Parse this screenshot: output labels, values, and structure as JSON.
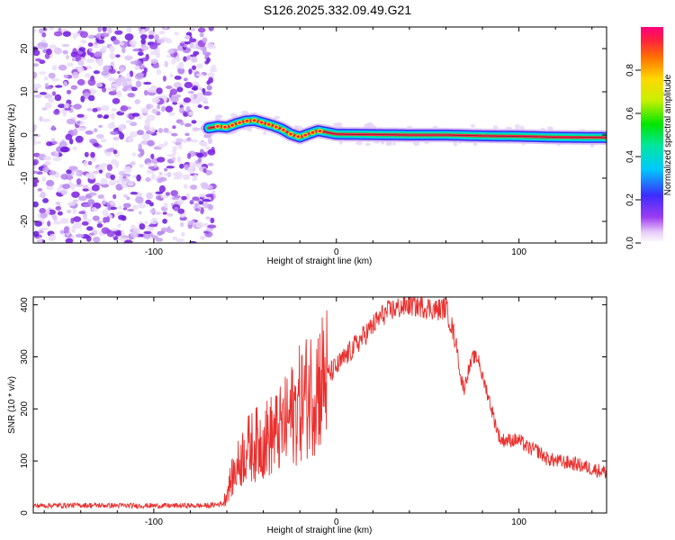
{
  "title": "S126.2025.332.09.49.G21",
  "colors": {
    "signal_line": "#e8302e",
    "axis": "#000000",
    "noise": "#7a2ee6",
    "track_center": "#ff2060"
  },
  "chart_data": [
    {
      "type": "heatmap",
      "xlabel": "Height of straight line (km)",
      "ylabel": "Frequency (Hz)",
      "xlim": [
        -166,
        148
      ],
      "ylim": [
        -25,
        25
      ],
      "xticks": [
        -100,
        0,
        100
      ],
      "yticks": [
        -20,
        -10,
        0,
        10,
        20
      ],
      "noise_region_x": [
        -166,
        -69
      ],
      "track": [
        [
          -70,
          1.6
        ],
        [
          -65,
          2.0
        ],
        [
          -60,
          1.8
        ],
        [
          -55,
          2.6
        ],
        [
          -50,
          3.2
        ],
        [
          -45,
          3.4
        ],
        [
          -40,
          2.8
        ],
        [
          -35,
          2.2
        ],
        [
          -30,
          1.4
        ],
        [
          -25,
          0.2
        ],
        [
          -20,
          -0.5
        ],
        [
          -15,
          0.3
        ],
        [
          -10,
          1.0
        ],
        [
          -5,
          0.6
        ],
        [
          0,
          0.2
        ],
        [
          20,
          0.1
        ],
        [
          40,
          0.0
        ],
        [
          60,
          0.0
        ],
        [
          80,
          -0.2
        ],
        [
          100,
          -0.3
        ],
        [
          120,
          -0.5
        ],
        [
          148,
          -0.6
        ]
      ],
      "colorbar": {
        "label": "Normalized spectral amplitude",
        "ticks": [
          0.0,
          0.2,
          0.4,
          0.6,
          0.8
        ],
        "range": [
          0,
          1
        ]
      }
    },
    {
      "type": "line",
      "xlabel": "Height of straight line (km)",
      "ylabel": "SNR (10 * v/v)",
      "xlim": [
        -166,
        148
      ],
      "ylim": [
        0,
        415
      ],
      "xticks": [
        -100,
        0,
        100
      ],
      "yticks": [
        0,
        100,
        200,
        300,
        400
      ],
      "series": [
        {
          "name": "SNR",
          "x": [
            -166,
            -140,
            -110,
            -90,
            -70,
            -62,
            -58,
            -50,
            -40,
            -30,
            -20,
            -10,
            0,
            10,
            20,
            25,
            30,
            40,
            50,
            55,
            60,
            63,
            66,
            68,
            70,
            72,
            75,
            78,
            80,
            82,
            85,
            88,
            90,
            95,
            100,
            105,
            110,
            115,
            120,
            130,
            140,
            148
          ],
          "y": [
            14,
            15,
            14,
            14,
            14,
            18,
            60,
            120,
            140,
            160,
            210,
            250,
            280,
            320,
            360,
            380,
            390,
            400,
            395,
            390,
            395,
            360,
            320,
            260,
            240,
            270,
            300,
            295,
            260,
            240,
            200,
            160,
            140,
            140,
            140,
            125,
            120,
            105,
            100,
            95,
            85,
            78
          ]
        }
      ]
    }
  ]
}
